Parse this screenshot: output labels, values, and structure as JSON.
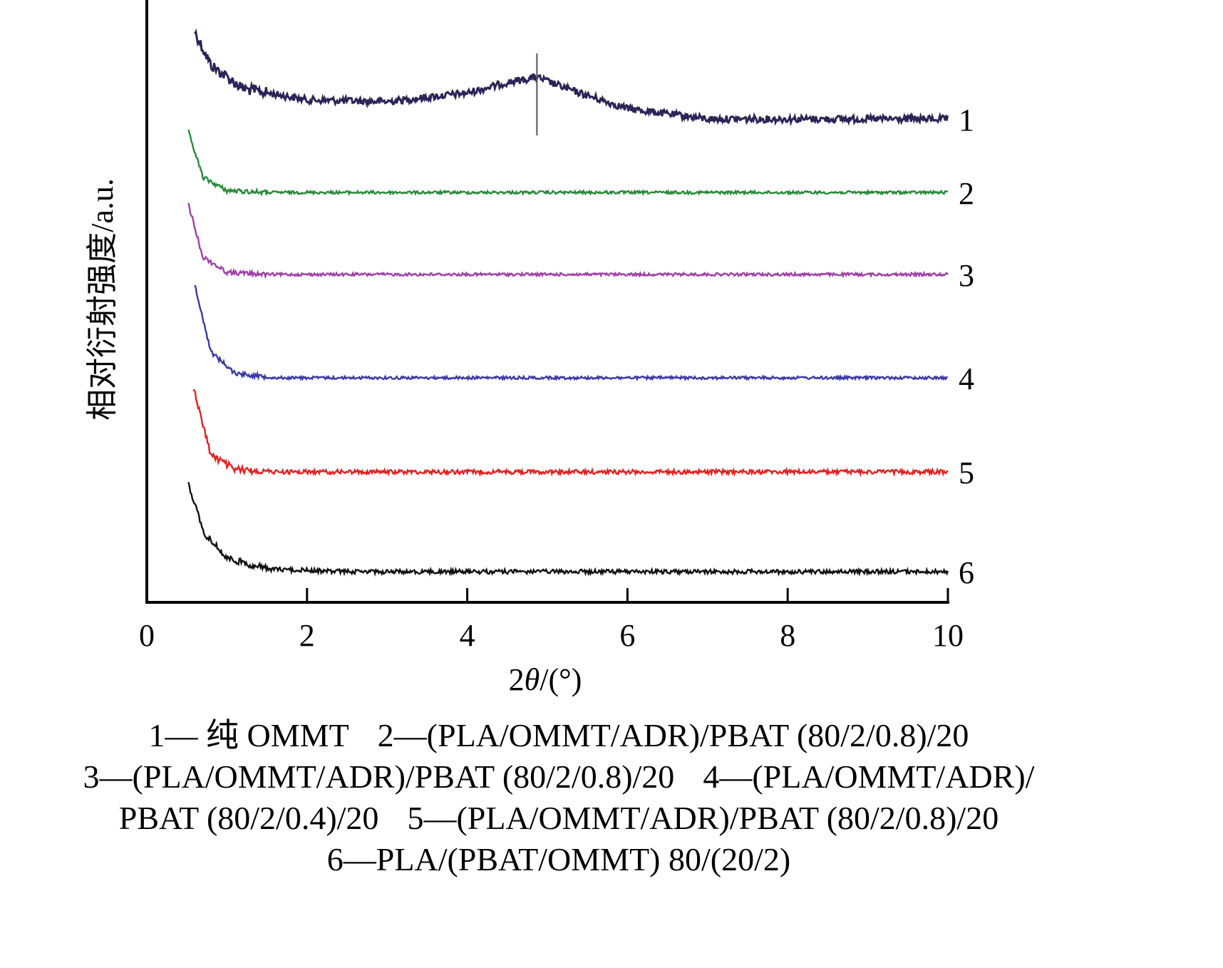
{
  "chart_data": {
    "type": "line",
    "xlabel_prefix": "2",
    "xlabel_symbol": "θ",
    "xlabel_suffix": "/(°)",
    "ylabel": "相对衍射强度/a.u.",
    "xlim": [
      0,
      10
    ],
    "xticks": [
      0,
      2,
      4,
      6,
      8,
      10
    ],
    "yticks_shown": false,
    "grid": false,
    "legend": "below",
    "series": [
      {
        "label": "1",
        "color": "#2b2457",
        "x_start": 0.6,
        "peak_at": 4.87,
        "marker_line_at": 4.87,
        "x": [
          0.6,
          0.8,
          1.2,
          2,
          3,
          4,
          4.5,
          4.87,
          5.3,
          6,
          7,
          10
        ],
        "y": [
          1.0,
          0.62,
          0.35,
          0.22,
          0.2,
          0.3,
          0.42,
          0.48,
          0.33,
          0.12,
          0.0,
          0.0
        ]
      },
      {
        "label": "2",
        "color": "#2a8a3a",
        "x_start": 0.52,
        "x": [
          0.52,
          0.7,
          1.0,
          1.5,
          10
        ],
        "y": [
          1.0,
          0.25,
          0.03,
          0.0,
          0.0
        ]
      },
      {
        "label": "3",
        "color": "#a040a8",
        "x_start": 0.52,
        "x": [
          0.52,
          0.7,
          1.0,
          1.5,
          10
        ],
        "y": [
          1.0,
          0.25,
          0.03,
          0.0,
          0.0
        ]
      },
      {
        "label": "4",
        "color": "#3a3aa8",
        "x_start": 0.6,
        "x": [
          0.6,
          0.8,
          1.1,
          1.6,
          10
        ],
        "y": [
          1.0,
          0.28,
          0.05,
          0.0,
          0.0
        ]
      },
      {
        "label": "5",
        "color": "#e82020",
        "x_start": 0.58,
        "x": [
          0.58,
          0.8,
          1.1,
          1.6,
          10
        ],
        "y": [
          1.0,
          0.2,
          0.03,
          0.0,
          0.0
        ]
      },
      {
        "label": "6",
        "color": "#111111",
        "x_start": 0.52,
        "x": [
          0.52,
          0.7,
          1.0,
          1.5,
          2.5,
          10
        ],
        "y": [
          1.0,
          0.45,
          0.15,
          0.03,
          0.0,
          0.0
        ]
      }
    ]
  },
  "caption": {
    "lines": [
      [
        "1— 纯 OMMT",
        "2—(PLA/OMMT/ADR)/PBAT (80/2/0.8)/20"
      ],
      [
        "3—(PLA/OMMT/ADR)/PBAT (80/2/0.8)/20",
        "4—(PLA/OMMT/ADR)/"
      ],
      [
        "PBAT (80/2/0.4)/20",
        "5—(PLA/OMMT/ADR)/PBAT (80/2/0.8)/20"
      ],
      [
        "6—PLA/(PBAT/OMMT) 80/(20/2)"
      ]
    ]
  }
}
